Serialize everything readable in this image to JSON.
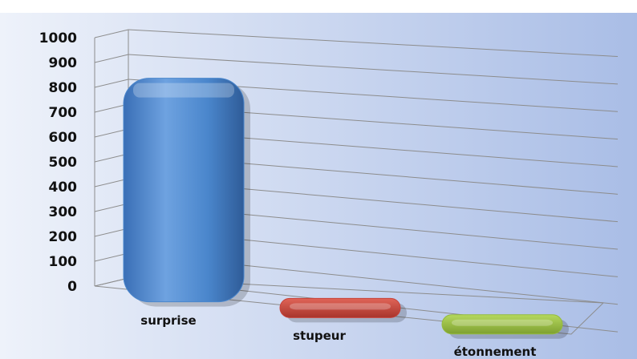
{
  "chart_data": {
    "type": "bar",
    "categories": [
      "surprise",
      "stupeur",
      "étonnement"
    ],
    "values": [
      900,
      10,
      5
    ],
    "ylim": [
      0,
      1000
    ],
    "yticks": [
      "0",
      "100",
      "200",
      "300",
      "400",
      "500",
      "600",
      "700",
      "800",
      "900",
      "1000"
    ],
    "grid": true,
    "style": "3d-cylinder",
    "colors": [
      "#4a86cc",
      "#c8423a",
      "#94bb3e"
    ],
    "background": [
      "#eef2fa",
      "#a9bde6"
    ]
  }
}
